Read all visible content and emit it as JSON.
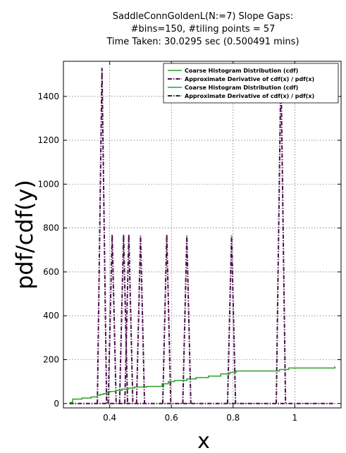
{
  "chart_data": {
    "type": "line",
    "title_lines": [
      "SaddleConnGoldenL(N:=7) Slope Gaps:",
      "#bins=150, #tiling points = 57",
      "Time Taken: 30.0295 sec (0.500491 mins)"
    ],
    "xlabel": "x",
    "ylabel": "pdf/cdf(y)",
    "xlim": [
      0.25,
      1.15
    ],
    "ylim": [
      -20,
      1560
    ],
    "x_ticks": [
      0.4,
      0.6,
      0.8,
      1.0
    ],
    "x_tick_labels": [
      "0.4",
      "0.6",
      "0.8",
      "1"
    ],
    "y_ticks": [
      0,
      200,
      400,
      600,
      800,
      1000,
      1200,
      1400
    ],
    "y_tick_labels": [
      "0",
      "200",
      "400",
      "600",
      "800",
      "1000",
      "1200",
      "1400"
    ],
    "grid": true,
    "legend_position": "top-right",
    "series": [
      {
        "name": "Coarse Histogram Distribution (cdf)",
        "style": "solid",
        "color": "#2ca02c",
        "kind": "step",
        "x": [
          0.27,
          0.28,
          0.31,
          0.34,
          0.36,
          0.37,
          0.38,
          0.39,
          0.4,
          0.42,
          0.44,
          0.46,
          0.48,
          0.52,
          0.57,
          0.59,
          0.61,
          0.65,
          0.68,
          0.72,
          0.76,
          0.79,
          0.81,
          0.95,
          0.98,
          1.13
        ],
        "y": [
          5,
          20,
          25,
          30,
          38,
          42,
          45,
          50,
          55,
          60,
          66,
          70,
          75,
          78,
          90,
          100,
          105,
          112,
          118,
          125,
          135,
          142,
          148,
          155,
          162,
          170
        ]
      },
      {
        "name": "Approximate Derivative of cdf(x) / pdf(x)",
        "style": "dashdot",
        "color": "#4b0f4b",
        "kind": "spikes",
        "baseline_x": [
          0.27,
          1.13
        ],
        "spikes": [
          {
            "x": 0.375,
            "height": 1530,
            "halfwidth": 0.015
          },
          {
            "x": 0.408,
            "height": 770,
            "halfwidth": 0.013
          },
          {
            "x": 0.445,
            "height": 770,
            "halfwidth": 0.013
          },
          {
            "x": 0.462,
            "height": 770,
            "halfwidth": 0.013
          },
          {
            "x": 0.5,
            "height": 765,
            "halfwidth": 0.013
          },
          {
            "x": 0.585,
            "height": 770,
            "halfwidth": 0.013
          },
          {
            "x": 0.65,
            "height": 765,
            "halfwidth": 0.013
          },
          {
            "x": 0.795,
            "height": 765,
            "halfwidth": 0.013
          },
          {
            "x": 0.955,
            "height": 1530,
            "halfwidth": 0.015
          }
        ]
      },
      {
        "name": "Coarse Histogram Distribution (cdf)",
        "style": "solid",
        "color": "#2ca02c",
        "kind": "legend-only"
      },
      {
        "name": "Approximate Derivative of cdf(x) / pdf(x)",
        "style": "dashdot",
        "color": "#4b0f4b",
        "kind": "legend-only"
      }
    ]
  }
}
